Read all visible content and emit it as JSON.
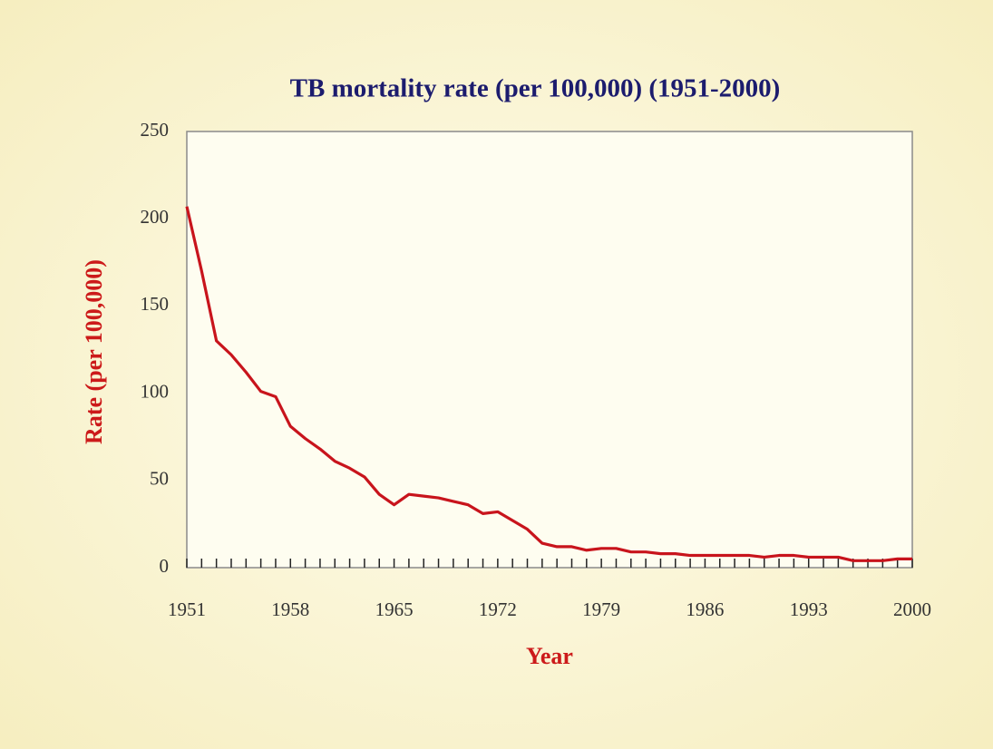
{
  "chart_data": {
    "type": "line",
    "title": "TB mortality rate (per 100,000) (1951-2000)",
    "x_label": "Year",
    "y_label": "Rate (per 100,000)",
    "x": [
      1951,
      1952,
      1953,
      1954,
      1955,
      1956,
      1957,
      1958,
      1959,
      1960,
      1961,
      1962,
      1963,
      1964,
      1965,
      1966,
      1967,
      1968,
      1969,
      1970,
      1971,
      1972,
      1973,
      1974,
      1975,
      1976,
      1977,
      1978,
      1979,
      1980,
      1981,
      1982,
      1983,
      1984,
      1985,
      1986,
      1987,
      1988,
      1989,
      1990,
      1991,
      1992,
      1993,
      1994,
      1995,
      1996,
      1997,
      1998,
      1999,
      2000
    ],
    "series": [
      {
        "name": "TB mortality rate",
        "color": "#c8141c",
        "values": [
          207,
          170,
          130,
          122,
          112,
          101,
          98,
          81,
          74,
          68,
          61,
          57,
          52,
          42,
          36,
          42,
          41,
          40,
          38,
          36,
          31,
          32,
          27,
          22,
          14,
          12,
          12,
          10,
          11,
          11,
          9,
          9,
          8,
          8,
          7,
          7,
          7,
          7,
          7,
          6,
          7,
          7,
          6,
          6,
          6,
          4,
          4,
          4,
          5,
          5
        ]
      }
    ],
    "xlim": [
      1951,
      2000
    ],
    "xticks": [
      1951,
      1958,
      1965,
      1972,
      1979,
      1986,
      1993,
      2000
    ],
    "ylim": [
      0,
      250
    ],
    "yticks": [
      0,
      50,
      100,
      150,
      200,
      250
    ],
    "grid": false
  }
}
